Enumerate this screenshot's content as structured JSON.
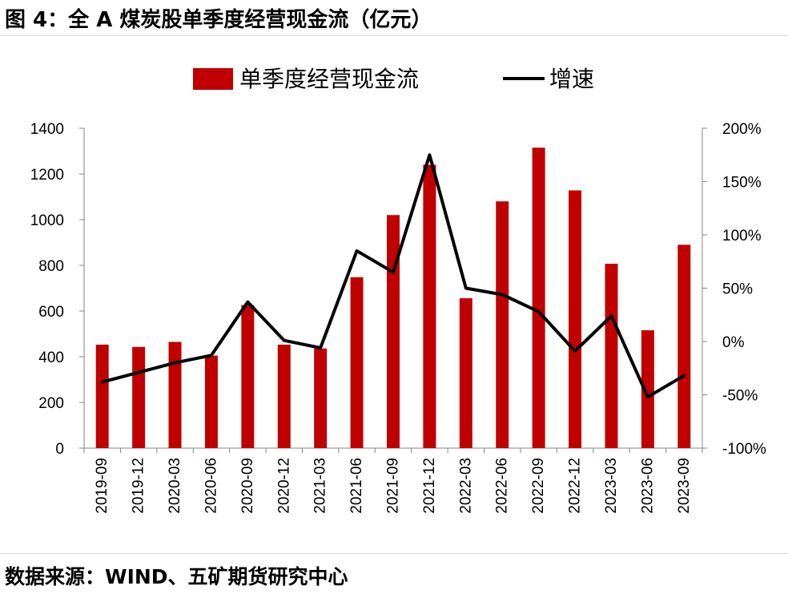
{
  "figure": {
    "title": "图 4：全 A 煤炭股单季度经营现金流（亿元）",
    "source": "数据来源：WIND、五矿期货研究中心"
  },
  "colors": {
    "bar": "#c00000",
    "line": "#000000"
  },
  "chart_data": {
    "type": "bar",
    "categories": [
      "2019-09",
      "2019-12",
      "2020-03",
      "2020-06",
      "2020-09",
      "2020-12",
      "2021-03",
      "2021-06",
      "2021-09",
      "2021-12",
      "2022-03",
      "2022-06",
      "2022-09",
      "2022-12",
      "2023-03",
      "2023-06",
      "2023-09"
    ],
    "series": [
      {
        "name": "单季度经营现金流",
        "type": "bar",
        "axis": "left",
        "values": [
          453,
          443,
          465,
          405,
          626,
          453,
          436,
          748,
          1020,
          1240,
          656,
          1080,
          1315,
          1128,
          807,
          516,
          890
        ]
      },
      {
        "name": "增速",
        "type": "line",
        "axis": "right",
        "values": [
          -38,
          -29,
          -20,
          -13,
          37,
          1,
          -6,
          85,
          65,
          175,
          50,
          44,
          28,
          -9,
          24,
          -52,
          -32
        ]
      }
    ],
    "ylim": [
      0,
      1400
    ],
    "yticks": [
      "0",
      "200",
      "400",
      "600",
      "800",
      "1000",
      "1200",
      "1400"
    ],
    "y2lim": [
      -100,
      200
    ],
    "y2ticks": [
      "-100%",
      "-50%",
      "0%",
      "50%",
      "100%",
      "150%",
      "200%"
    ],
    "legend_position": "top-center",
    "grid": false
  }
}
